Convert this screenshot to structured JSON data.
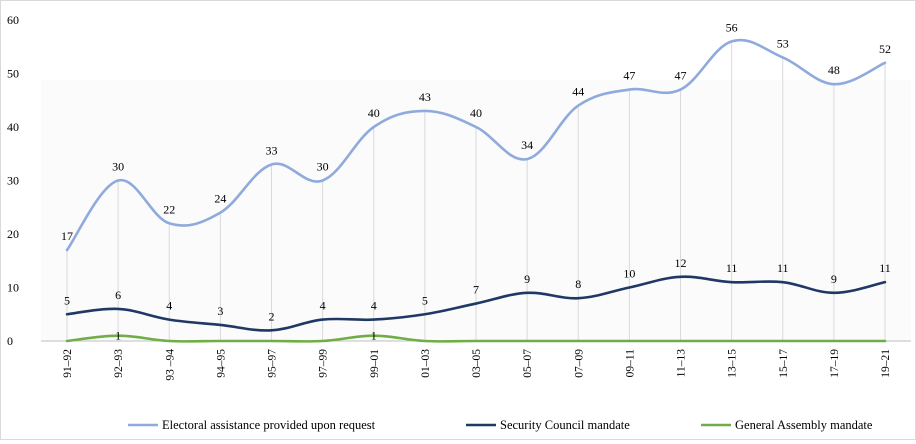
{
  "chart_data": {
    "type": "line",
    "categories": [
      "91–92",
      "92–93",
      "93 –94",
      "94–95",
      "95–97",
      "97–99",
      "99–01",
      "01–03",
      "03–05",
      "05–07",
      "07–09",
      "09–11",
      "11–13",
      "13–15",
      "15–17",
      "17–19",
      "19–21"
    ],
    "series": [
      {
        "name": "Electoral assistance provided upon request",
        "color": "#8faadc",
        "values": [
          17,
          30,
          22,
          24,
          33,
          30,
          40,
          43,
          40,
          34,
          44,
          47,
          47,
          56,
          53,
          48,
          52
        ]
      },
      {
        "name": "Security Council mandate",
        "color": "#1f3864",
        "values": [
          5,
          6,
          4,
          3,
          2,
          4,
          4,
          5,
          7,
          9,
          8,
          10,
          12,
          11,
          11,
          9,
          11
        ]
      },
      {
        "name": "General Assembly mandate",
        "color": "#70ad47",
        "values": [
          0,
          1,
          0,
          0,
          0,
          0,
          1,
          0,
          0,
          0,
          0,
          0,
          0,
          0,
          0,
          0,
          0
        ]
      }
    ],
    "data_labels": {
      "Electoral assistance provided upon request": [
        "17",
        "30",
        "22",
        "24",
        "33",
        "30",
        "40",
        "43",
        "40",
        "34",
        "44",
        "47",
        "47",
        "56",
        "53",
        "48",
        "52"
      ],
      "Security Council mandate": [
        "5",
        "6",
        "4",
        "3",
        "2",
        "4",
        "4",
        "5",
        "7",
        "9",
        "8",
        "10",
        "12",
        "11",
        "11",
        "9",
        "11"
      ],
      "General Assembly mandate": [
        "",
        "1",
        "",
        "",
        "",
        "",
        "1",
        "",
        "",
        "",
        "",
        "",
        "",
        "",
        "",
        "",
        ""
      ]
    },
    "yticks": [
      "0",
      "10",
      "20",
      "30",
      "40",
      "50",
      "60"
    ],
    "ylim": [
      0,
      60
    ],
    "grid": "vertical lines at categories",
    "legend_position": "bottom",
    "title": "",
    "xlabel": "",
    "ylabel": ""
  }
}
